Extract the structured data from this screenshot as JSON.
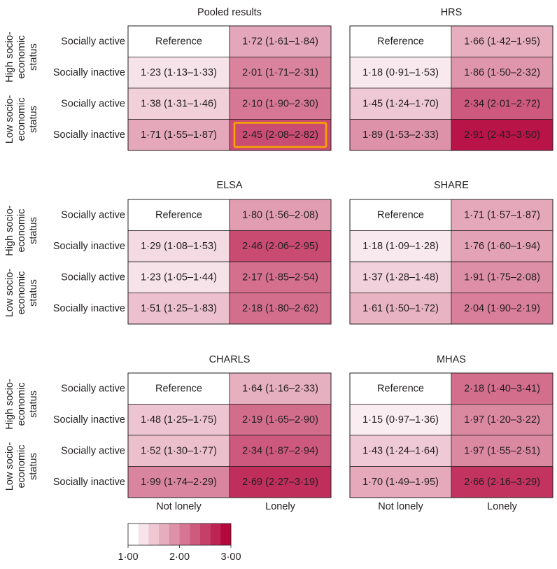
{
  "chart_data": {
    "type": "heatmap",
    "column_labels": [
      "Not lonely",
      "Lonely"
    ],
    "row_labels": [
      "Socially active",
      "Socially inactive",
      "Socially active",
      "Socially inactive"
    ],
    "group_labels": {
      "high": [
        "High socio-",
        "economic",
        "status"
      ],
      "low": [
        "Low socio-",
        "economic",
        "status"
      ]
    },
    "color_scale": {
      "min": 1.0,
      "max": 3.0,
      "min_color": "#ffffff",
      "max_color": "#b5093e",
      "steps": 10,
      "tick_labels": [
        "1·00",
        "2·00",
        "3·00"
      ],
      "tick_values": [
        1.0,
        2.0,
        3.0
      ]
    },
    "highlight_color": "#f7a600",
    "panels": [
      {
        "title": "Pooled results",
        "cells": [
          [
            {
              "value": 1.0,
              "label": "Reference"
            },
            {
              "value": 1.72,
              "label": "1·72 (1·61–1·84)"
            }
          ],
          [
            {
              "value": 1.23,
              "label": "1·23 (1·13–1·33)"
            },
            {
              "value": 2.01,
              "label": "2·01 (1·71–2·31)"
            }
          ],
          [
            {
              "value": 1.38,
              "label": "1·38 (1·31–1·46)"
            },
            {
              "value": 2.1,
              "label": "2·10 (1·90–2·30)"
            }
          ],
          [
            {
              "value": 1.71,
              "label": "1·71 (1·55–1·87)"
            },
            {
              "value": 2.45,
              "label": "2·45 (2·08–2·82)",
              "highlight": true
            }
          ]
        ]
      },
      {
        "title": "HRS",
        "cells": [
          [
            {
              "value": 1.0,
              "label": "Reference"
            },
            {
              "value": 1.66,
              "label": "1·66 (1·42–1·95)"
            }
          ],
          [
            {
              "value": 1.18,
              "label": "1·18 (0·91–1·53)"
            },
            {
              "value": 1.86,
              "label": "1·86 (1·50–2·32)"
            }
          ],
          [
            {
              "value": 1.45,
              "label": "1·45 (1·24–1·70)"
            },
            {
              "value": 2.34,
              "label": "2·34 (2·01–2·72)"
            }
          ],
          [
            {
              "value": 1.89,
              "label": "1·89 (1·53–2·33)"
            },
            {
              "value": 2.91,
              "label": "2·91 (2·43–3·50)"
            }
          ]
        ]
      },
      {
        "title": "ELSA",
        "cells": [
          [
            {
              "value": 1.0,
              "label": "Reference"
            },
            {
              "value": 1.8,
              "label": "1·80 (1·56–2·08)"
            }
          ],
          [
            {
              "value": 1.29,
              "label": "1·29 (1·08–1·53)"
            },
            {
              "value": 2.46,
              "label": "2·46 (2·06–2·95)"
            }
          ],
          [
            {
              "value": 1.23,
              "label": "1·23 (1·05–1·44)"
            },
            {
              "value": 2.17,
              "label": "2·17 (1·85–2·54)"
            }
          ],
          [
            {
              "value": 1.51,
              "label": "1·51 (1·25–1·83)"
            },
            {
              "value": 2.18,
              "label": "2·18 (1·80–2·62)"
            }
          ]
        ]
      },
      {
        "title": "SHARE",
        "cells": [
          [
            {
              "value": 1.0,
              "label": "Reference"
            },
            {
              "value": 1.71,
              "label": "1·71 (1·57–1·87)"
            }
          ],
          [
            {
              "value": 1.18,
              "label": "1·18 (1·09–1·28)"
            },
            {
              "value": 1.76,
              "label": "1·76 (1·60–1·94)"
            }
          ],
          [
            {
              "value": 1.37,
              "label": "1·37 (1·28–1·48)"
            },
            {
              "value": 1.91,
              "label": "1·91 (1·75–2·08)"
            }
          ],
          [
            {
              "value": 1.61,
              "label": "1·61 (1·50–1·72)"
            },
            {
              "value": 2.04,
              "label": "2·04 (1·90–2·19)"
            }
          ]
        ]
      },
      {
        "title": "CHARLS",
        "cells": [
          [
            {
              "value": 1.0,
              "label": "Reference"
            },
            {
              "value": 1.64,
              "label": "1·64 (1·16–2·33)"
            }
          ],
          [
            {
              "value": 1.48,
              "label": "1·48 (1·25–1·75)"
            },
            {
              "value": 2.19,
              "label": "2·19 (1·65–2·90)"
            }
          ],
          [
            {
              "value": 1.52,
              "label": "1·52 (1·30–1·77)"
            },
            {
              "value": 2.34,
              "label": "2·34 (1·87–2·94)"
            }
          ],
          [
            {
              "value": 1.99,
              "label": "1·99 (1·74–2·29)"
            },
            {
              "value": 2.69,
              "label": "2·69 (2·27–3·19)"
            }
          ]
        ]
      },
      {
        "title": "MHAS",
        "cells": [
          [
            {
              "value": 1.0,
              "label": "Reference"
            },
            {
              "value": 2.18,
              "label": "2·18 (1·40–3·41)"
            }
          ],
          [
            {
              "value": 1.15,
              "label": "1·15 (0·97–1·36)"
            },
            {
              "value": 1.97,
              "label": "1·97 (1·20–3·22)"
            }
          ],
          [
            {
              "value": 1.43,
              "label": "1·43 (1·24–1·64)"
            },
            {
              "value": 1.97,
              "label": "1·97 (1·55–2·51)"
            }
          ],
          [
            {
              "value": 1.7,
              "label": "1·70 (1·49–1·95)"
            },
            {
              "value": 2.66,
              "label": "2·66 (2·16–3·29)"
            }
          ]
        ]
      }
    ]
  }
}
